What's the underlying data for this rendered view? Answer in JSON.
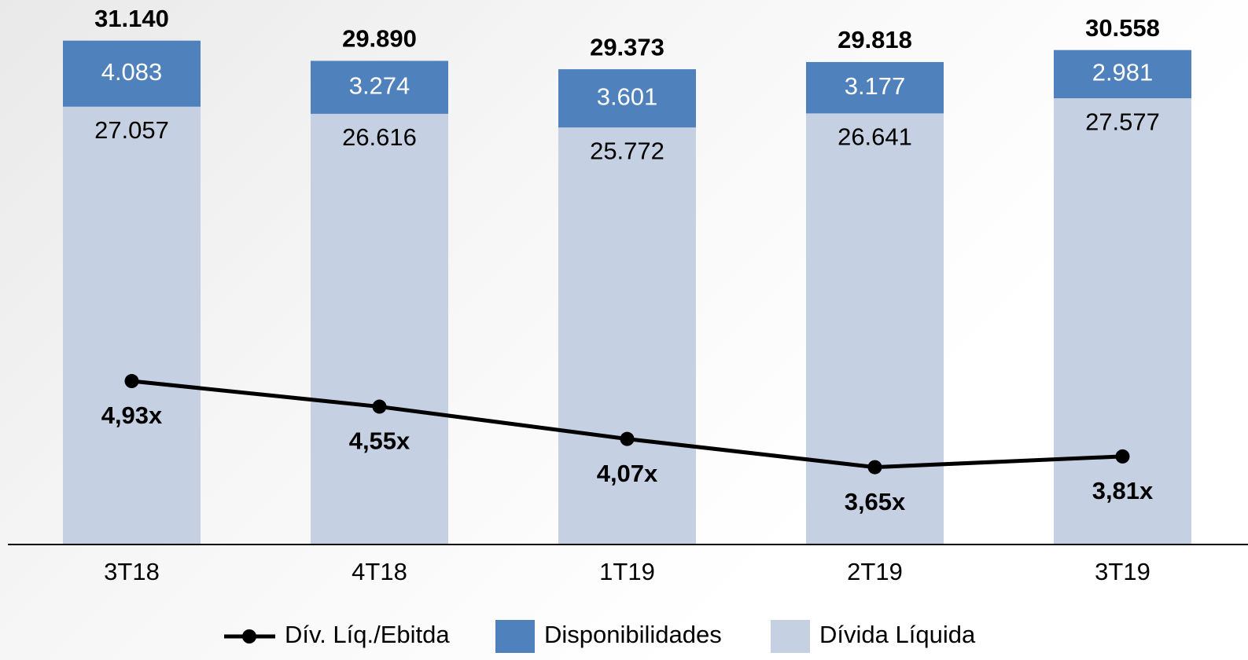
{
  "chart_data": {
    "type": "stacked-bar-line",
    "categories": [
      "3T18",
      "4T18",
      "1T19",
      "2T19",
      "3T19"
    ],
    "series": [
      {
        "name": "Dívida Líquida",
        "color": "#c5d0e2",
        "label_color": "#000000",
        "values": [
          27057,
          26616,
          25772,
          26641,
          27577
        ],
        "value_labels": [
          "27.057",
          "26.616",
          "25.772",
          "26.641",
          "27.577"
        ]
      },
      {
        "name": "Disponibilidades",
        "color": "#4f81bd",
        "label_color": "#ffffff",
        "values": [
          4083,
          3274,
          3601,
          3177,
          2981
        ],
        "value_labels": [
          "4.083",
          "3.274",
          "3.601",
          "3.177",
          "2.981"
        ]
      },
      {
        "name": "Dív. Líq./Ebitda",
        "type": "line",
        "axis": "y2",
        "color": "#000000",
        "values": [
          4.93,
          4.55,
          4.07,
          3.65,
          3.81
        ],
        "value_labels": [
          "4,93x",
          "4,55x",
          "4,07x",
          "3,65x",
          "3,81x"
        ]
      }
    ],
    "totals": {
      "values": [
        31140,
        29890,
        29373,
        29818,
        30558
      ],
      "value_labels": [
        "31.140",
        "29.890",
        "29.373",
        "29.818",
        "30.558"
      ]
    },
    "ylim": [
      0,
      32000
    ],
    "y2lim": [
      2.5,
      10.2
    ],
    "legend": "bottom"
  }
}
